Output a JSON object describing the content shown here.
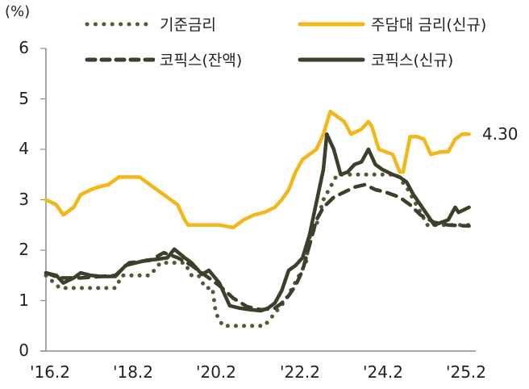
{
  "chart_data": {
    "type": "line",
    "title": "",
    "unit_label": "(%)",
    "xlabel": "",
    "ylabel": "%",
    "ylim": [
      0,
      6
    ],
    "yticks": [
      "0",
      "1",
      "2",
      "3",
      "4",
      "5",
      "6"
    ],
    "xticks": [
      "'16.2",
      "'18.2",
      "'20.2",
      "'22.2",
      "'24.2",
      "'25.2"
    ],
    "xtick_months": [
      0,
      24,
      48,
      72,
      96,
      108
    ],
    "x_start": "2016-02",
    "grid": false,
    "legend_position": "top",
    "end_annotation": {
      "series": "주담대 금리(신규)",
      "text": "4.30"
    },
    "series": [
      {
        "name": "기준금리",
        "style": "dotted",
        "color": "#4f5a3a",
        "points": [
          [
            0,
            1.5
          ],
          [
            4,
            1.25
          ],
          [
            10,
            1.25
          ],
          [
            20,
            1.25
          ],
          [
            22,
            1.5
          ],
          [
            30,
            1.5
          ],
          [
            33,
            1.75
          ],
          [
            40,
            1.75
          ],
          [
            42,
            1.5
          ],
          [
            44,
            1.5
          ],
          [
            46,
            1.25
          ],
          [
            48,
            1.25
          ],
          [
            49,
            0.75
          ],
          [
            51,
            0.5
          ],
          [
            63,
            0.5
          ],
          [
            66,
            0.75
          ],
          [
            69,
            1.0
          ],
          [
            71,
            1.25
          ],
          [
            73,
            1.5
          ],
          [
            75,
            1.75
          ],
          [
            76,
            2.25
          ],
          [
            78,
            2.5
          ],
          [
            79,
            2.75
          ],
          [
            80,
            3.0
          ],
          [
            82,
            3.25
          ],
          [
            84,
            3.5
          ],
          [
            101,
            3.5
          ],
          [
            104,
            3.25
          ],
          [
            106,
            3.0
          ],
          [
            108,
            2.75
          ],
          [
            110,
            2.5
          ],
          [
            122,
            2.5
          ]
        ]
      },
      {
        "name": "코픽스(잔액)",
        "style": "dashed",
        "color": "#3e3e2c",
        "points": [
          [
            0,
            1.55
          ],
          [
            4,
            1.45
          ],
          [
            10,
            1.45
          ],
          [
            20,
            1.5
          ],
          [
            24,
            1.75
          ],
          [
            30,
            1.8
          ],
          [
            34,
            1.95
          ],
          [
            38,
            1.85
          ],
          [
            42,
            1.7
          ],
          [
            46,
            1.5
          ],
          [
            50,
            1.3
          ],
          [
            54,
            1.05
          ],
          [
            58,
            0.88
          ],
          [
            62,
            0.82
          ],
          [
            66,
            0.85
          ],
          [
            68,
            0.95
          ],
          [
            70,
            1.1
          ],
          [
            72,
            1.3
          ],
          [
            74,
            1.6
          ],
          [
            76,
            2.1
          ],
          [
            78,
            2.6
          ],
          [
            80,
            2.85
          ],
          [
            83,
            3.05
          ],
          [
            86,
            3.15
          ],
          [
            89,
            3.25
          ],
          [
            92,
            3.3
          ],
          [
            95,
            3.2
          ],
          [
            98,
            3.15
          ],
          [
            102,
            3.05
          ],
          [
            105,
            2.9
          ],
          [
            108,
            2.7
          ],
          [
            112,
            2.55
          ],
          [
            116,
            2.5
          ],
          [
            122,
            2.48
          ]
        ]
      },
      {
        "name": "주담대 금리(신규)",
        "style": "solid",
        "color": "#f2b71a",
        "points": [
          [
            0,
            3.0
          ],
          [
            3,
            2.9
          ],
          [
            5,
            2.7
          ],
          [
            8,
            2.85
          ],
          [
            10,
            3.1
          ],
          [
            13,
            3.2
          ],
          [
            15,
            3.25
          ],
          [
            18,
            3.3
          ],
          [
            21,
            3.45
          ],
          [
            24,
            3.45
          ],
          [
            27,
            3.45
          ],
          [
            30,
            3.3
          ],
          [
            34,
            3.1
          ],
          [
            38,
            2.9
          ],
          [
            40,
            2.6
          ],
          [
            41,
            2.5
          ],
          [
            44,
            2.5
          ],
          [
            46,
            2.5
          ],
          [
            50,
            2.5
          ],
          [
            54,
            2.45
          ],
          [
            57,
            2.6
          ],
          [
            60,
            2.7
          ],
          [
            63,
            2.75
          ],
          [
            66,
            2.85
          ],
          [
            68,
            3.0
          ],
          [
            70,
            3.2
          ],
          [
            72,
            3.55
          ],
          [
            74,
            3.8
          ],
          [
            76,
            3.9
          ],
          [
            78,
            4.0
          ],
          [
            80,
            4.3
          ],
          [
            82,
            4.75
          ],
          [
            84,
            4.65
          ],
          [
            86,
            4.55
          ],
          [
            88,
            4.3
          ],
          [
            91,
            4.4
          ],
          [
            93,
            4.55
          ],
          [
            94,
            4.45
          ],
          [
            96,
            4.0
          ],
          [
            98,
            3.95
          ],
          [
            100,
            3.9
          ],
          [
            102,
            3.55
          ],
          [
            103,
            3.55
          ],
          [
            105,
            4.25
          ],
          [
            107,
            4.25
          ],
          [
            109,
            4.2
          ],
          [
            111,
            3.9
          ],
          [
            114,
            3.95
          ],
          [
            116,
            3.95
          ],
          [
            118,
            4.2
          ],
          [
            120,
            4.3
          ],
          [
            122,
            4.3
          ]
        ]
      },
      {
        "name": "코픽스(신규)",
        "style": "solid",
        "color": "#3e3e2a",
        "points": [
          [
            0,
            1.55
          ],
          [
            3,
            1.5
          ],
          [
            5,
            1.35
          ],
          [
            8,
            1.45
          ],
          [
            10,
            1.55
          ],
          [
            13,
            1.5
          ],
          [
            16,
            1.48
          ],
          [
            20,
            1.48
          ],
          [
            23,
            1.7
          ],
          [
            26,
            1.75
          ],
          [
            29,
            1.8
          ],
          [
            32,
            1.82
          ],
          [
            35,
            1.85
          ],
          [
            37,
            2.02
          ],
          [
            40,
            1.85
          ],
          [
            42,
            1.75
          ],
          [
            45,
            1.52
          ],
          [
            47,
            1.6
          ],
          [
            50,
            1.35
          ],
          [
            53,
            0.9
          ],
          [
            56,
            0.85
          ],
          [
            59,
            0.82
          ],
          [
            62,
            0.8
          ],
          [
            64,
            0.85
          ],
          [
            66,
            0.95
          ],
          [
            68,
            1.2
          ],
          [
            70,
            1.6
          ],
          [
            72,
            1.7
          ],
          [
            74,
            1.85
          ],
          [
            76,
            2.3
          ],
          [
            78,
            2.95
          ],
          [
            80,
            3.6
          ],
          [
            81,
            4.3
          ],
          [
            83,
            4.0
          ],
          [
            85,
            3.5
          ],
          [
            87,
            3.55
          ],
          [
            89,
            3.7
          ],
          [
            91,
            3.75
          ],
          [
            93,
            4.0
          ],
          [
            95,
            3.7
          ],
          [
            97,
            3.6
          ],
          [
            100,
            3.5
          ],
          [
            102,
            3.45
          ],
          [
            104,
            3.35
          ],
          [
            106,
            3.1
          ],
          [
            108,
            2.9
          ],
          [
            110,
            2.7
          ],
          [
            112,
            2.5
          ],
          [
            114,
            2.55
          ],
          [
            116,
            2.6
          ],
          [
            118,
            2.85
          ],
          [
            119,
            2.75
          ],
          [
            122,
            2.85
          ]
        ]
      }
    ]
  }
}
